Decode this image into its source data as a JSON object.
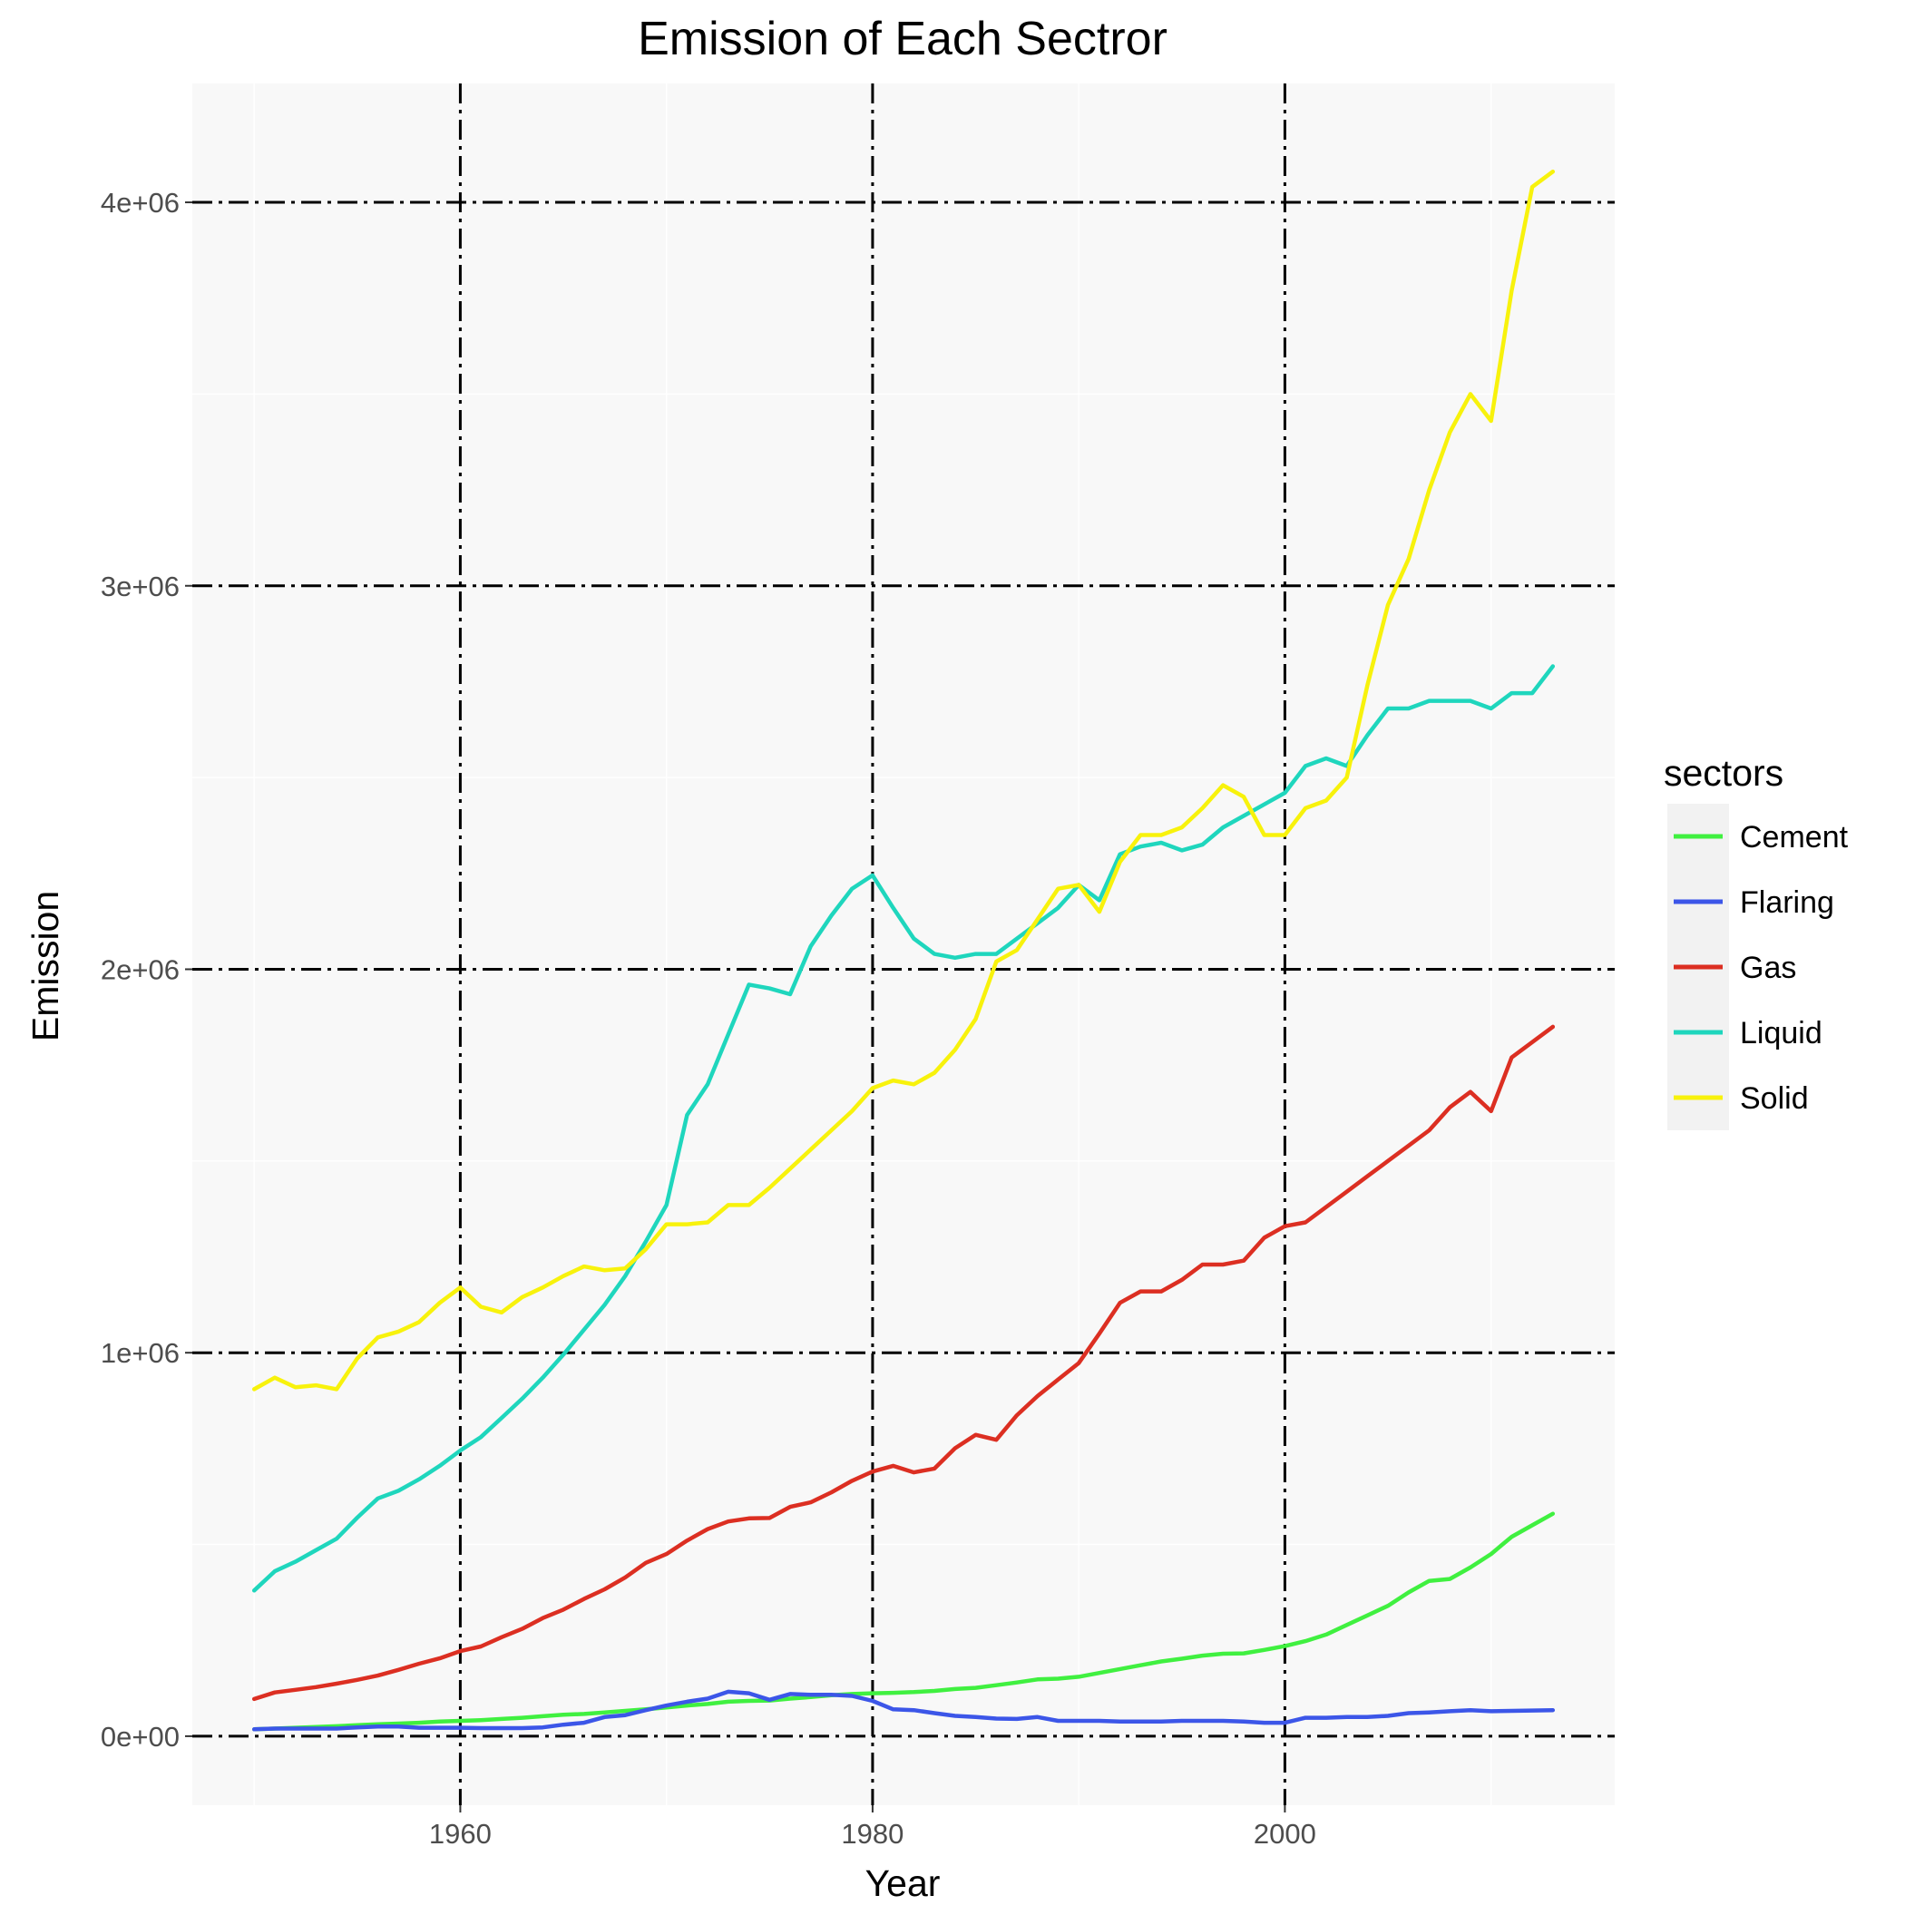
{
  "chart_data": {
    "type": "line",
    "title": "Emission of Each Sectror",
    "xlabel": "Year",
    "ylabel": "Emission",
    "xlim": [
      1947,
      2016
    ],
    "ylim": [
      -180000,
      4310000
    ],
    "x_ticks": [
      1960,
      1980,
      2000
    ],
    "x_tick_labels": [
      "1960",
      "1980",
      "2000"
    ],
    "y_ticks": [
      0,
      1000000,
      2000000,
      3000000,
      4000000
    ],
    "y_tick_labels": [
      "0e+00",
      "1e+06",
      "2e+06",
      "3e+06",
      "4e+06"
    ],
    "grid": true,
    "legend": {
      "title": "sectors",
      "position": "right"
    },
    "x": [
      1950,
      1951,
      1952,
      1953,
      1954,
      1955,
      1956,
      1957,
      1958,
      1959,
      1960,
      1961,
      1962,
      1963,
      1964,
      1965,
      1966,
      1967,
      1968,
      1969,
      1970,
      1971,
      1972,
      1973,
      1974,
      1975,
      1976,
      1977,
      1978,
      1979,
      1980,
      1981,
      1982,
      1983,
      1984,
      1985,
      1986,
      1987,
      1988,
      1989,
      1990,
      1991,
      1992,
      1993,
      1994,
      1995,
      1996,
      1997,
      1998,
      1999,
      2000,
      2001,
      2002,
      2003,
      2004,
      2005,
      2006,
      2007,
      2008,
      2009,
      2010,
      2011,
      2012,
      2013
    ],
    "series": [
      {
        "name": "Cement",
        "color": "#40f040",
        "values": [
          18000,
          20000,
          22000,
          24000,
          26000,
          29000,
          31000,
          33000,
          35000,
          38000,
          40000,
          42000,
          45000,
          48000,
          52000,
          56000,
          58000,
          62000,
          66000,
          70000,
          75000,
          80000,
          84000,
          90000,
          92000,
          93000,
          98000,
          102000,
          107000,
          110000,
          112000,
          113000,
          115000,
          118000,
          123000,
          126000,
          133000,
          140000,
          148000,
          150000,
          155000,
          165000,
          175000,
          185000,
          195000,
          202000,
          210000,
          215000,
          216000,
          225000,
          235000,
          248000,
          265000,
          290000,
          315000,
          340000,
          375000,
          405000,
          410000,
          440000,
          475000,
          520000,
          550000,
          580000
        ]
      },
      {
        "name": "Flaring",
        "color": "#3c56e8",
        "values": [
          18000,
          20000,
          20000,
          20000,
          20000,
          23000,
          25000,
          25000,
          22000,
          22000,
          22000,
          21000,
          21000,
          21000,
          23000,
          30000,
          35000,
          50000,
          55000,
          68000,
          80000,
          90000,
          98000,
          116000,
          112000,
          95000,
          110000,
          108000,
          108000,
          105000,
          92000,
          70000,
          68000,
          60000,
          53000,
          50000,
          46000,
          45000,
          50000,
          40000,
          40000,
          40000,
          38000,
          38000,
          38000,
          40000,
          40000,
          40000,
          38000,
          35000,
          35000,
          48000,
          48000,
          50000,
          50000,
          53000,
          60000,
          62000,
          65000,
          68000,
          65000,
          66000,
          67000,
          68000
        ]
      },
      {
        "name": "Gas",
        "color": "#dc2f22",
        "values": [
          97000,
          114000,
          121000,
          128000,
          137000,
          147000,
          158000,
          173000,
          189000,
          203000,
          222000,
          234000,
          258000,
          280000,
          308000,
          330000,
          358000,
          383000,
          414000,
          452000,
          475000,
          510000,
          540000,
          560000,
          568000,
          569000,
          598000,
          610000,
          636000,
          666000,
          690000,
          705000,
          688000,
          698000,
          751000,
          786000,
          773000,
          837000,
          887000,
          930000,
          973000,
          1050000,
          1130000,
          1160000,
          1160000,
          1190000,
          1230000,
          1230000,
          1240000,
          1300000,
          1330000,
          1340000,
          1380000,
          1420000,
          1460000,
          1500000,
          1540000,
          1580000,
          1640000,
          1680000,
          1630000,
          1770000,
          1810000,
          1850000
        ]
      },
      {
        "name": "Liquid",
        "color": "#1fd6bd",
        "values": [
          380000,
          430000,
          455000,
          485000,
          515000,
          570000,
          620000,
          640000,
          670000,
          705000,
          745000,
          780000,
          830000,
          880000,
          935000,
          995000,
          1060000,
          1125000,
          1200000,
          1290000,
          1385000,
          1620000,
          1700000,
          1830000,
          1960000,
          1950000,
          1935000,
          2060000,
          2140000,
          2210000,
          2245000,
          2160000,
          2080000,
          2040000,
          2030000,
          2040000,
          2040000,
          2080000,
          2120000,
          2160000,
          2220000,
          2180000,
          2300000,
          2320000,
          2330000,
          2310000,
          2325000,
          2370000,
          2400000,
          2430000,
          2460000,
          2530000,
          2550000,
          2530000,
          2610000,
          2680000,
          2680000,
          2700000,
          2700000,
          2700000,
          2680000,
          2720000,
          2720000,
          2790000
        ]
      },
      {
        "name": "Solid",
        "color": "#f8f20c",
        "values": [
          905000,
          935000,
          910000,
          915000,
          905000,
          985000,
          1040000,
          1055000,
          1080000,
          1130000,
          1170000,
          1120000,
          1105000,
          1145000,
          1170000,
          1200000,
          1225000,
          1215000,
          1220000,
          1270000,
          1335000,
          1335000,
          1340000,
          1385000,
          1385000,
          1430000,
          1480000,
          1530000,
          1580000,
          1630000,
          1690000,
          1710000,
          1700000,
          1730000,
          1790000,
          1870000,
          2020000,
          2050000,
          2130000,
          2210000,
          2220000,
          2150000,
          2280000,
          2350000,
          2350000,
          2370000,
          2420000,
          2480000,
          2450000,
          2350000,
          2350000,
          2420000,
          2440000,
          2500000,
          2740000,
          2950000,
          3070000,
          3250000,
          3400000,
          3500000,
          3430000,
          3770000,
          4040000,
          4080000
        ]
      }
    ]
  }
}
